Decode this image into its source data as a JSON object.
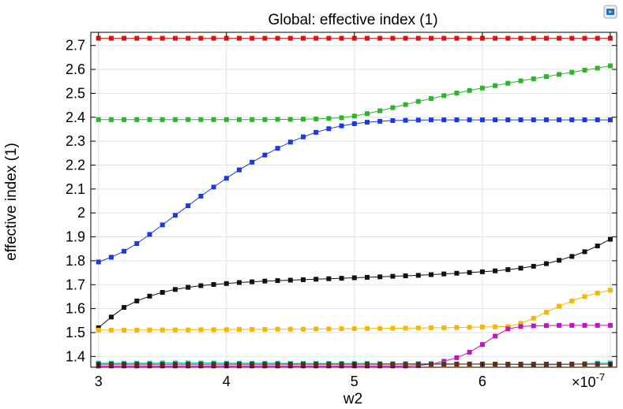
{
  "chart_data": {
    "type": "line",
    "title": "Global: effective index (1)",
    "xlabel": "w2",
    "ylabel": "effective index (1)",
    "x_multiplier_label": "×10",
    "x_multiplier_exponent": "-7",
    "xlim": [
      2.94,
      7.05
    ],
    "ylim": [
      1.355,
      2.755
    ],
    "x_ticks": [
      3,
      4,
      5,
      6,
      7
    ],
    "x_tick_labels": [
      "3",
      "4",
      "5",
      "6",
      ""
    ],
    "y_ticks": [
      1.4,
      1.5,
      1.6,
      1.7,
      1.8,
      1.9,
      2.0,
      2.1,
      2.2,
      2.3,
      2.4,
      2.5,
      2.6,
      2.7
    ],
    "y_tick_labels": [
      "1.4",
      "1.5",
      "1.6",
      "1.7",
      "1.8",
      "1.9",
      "2",
      "2.1",
      "2.2",
      "2.3",
      "2.4",
      "2.5",
      "2.6",
      "2.7"
    ],
    "grid": true,
    "legend": "none",
    "x": [
      3.0,
      3.1,
      3.2,
      3.3,
      3.4,
      3.5,
      3.6,
      3.7,
      3.8,
      3.9,
      4.0,
      4.1,
      4.2,
      4.3,
      4.4,
      4.5,
      4.6,
      4.7,
      4.8,
      4.9,
      5.0,
      5.1,
      5.2,
      5.3,
      5.4,
      5.5,
      5.6,
      5.7,
      5.8,
      5.9,
      6.0,
      6.1,
      6.2,
      6.3,
      6.4,
      6.5,
      6.6,
      6.7,
      6.8,
      6.9,
      7.0
    ],
    "series": [
      {
        "color": "#dd1111",
        "values": [
          2.73,
          2.73,
          2.73,
          2.73,
          2.73,
          2.73,
          2.73,
          2.73,
          2.73,
          2.73,
          2.73,
          2.73,
          2.73,
          2.73,
          2.73,
          2.73,
          2.73,
          2.73,
          2.73,
          2.73,
          2.73,
          2.73,
          2.73,
          2.73,
          2.73,
          2.73,
          2.73,
          2.73,
          2.73,
          2.73,
          2.73,
          2.73,
          2.73,
          2.73,
          2.73,
          2.73,
          2.73,
          2.73,
          2.73,
          2.73,
          2.73
        ]
      },
      {
        "color": "#2ab52a",
        "values": [
          2.39,
          2.39,
          2.39,
          2.39,
          2.39,
          2.39,
          2.39,
          2.39,
          2.39,
          2.39,
          2.39,
          2.39,
          2.39,
          2.39,
          2.391,
          2.391,
          2.392,
          2.393,
          2.395,
          2.398,
          2.405,
          2.415,
          2.427,
          2.44,
          2.453,
          2.466,
          2.478,
          2.49,
          2.501,
          2.512,
          2.522,
          2.532,
          2.542,
          2.552,
          2.561,
          2.57,
          2.579,
          2.588,
          2.597,
          2.605,
          2.615
        ]
      },
      {
        "color": "#1a3ae0",
        "values": [
          1.795,
          1.815,
          1.84,
          1.872,
          1.91,
          1.95,
          1.99,
          2.03,
          2.07,
          2.108,
          2.145,
          2.18,
          2.212,
          2.242,
          2.27,
          2.296,
          2.318,
          2.337,
          2.352,
          2.364,
          2.373,
          2.379,
          2.383,
          2.386,
          2.387,
          2.388,
          2.389,
          2.389,
          2.389,
          2.389,
          2.389,
          2.389,
          2.389,
          2.389,
          2.389,
          2.389,
          2.389,
          2.389,
          2.389,
          2.389,
          2.389
        ]
      },
      {
        "color": "#111111",
        "values": [
          1.52,
          1.565,
          1.605,
          1.632,
          1.652,
          1.668,
          1.68,
          1.689,
          1.696,
          1.701,
          1.705,
          1.709,
          1.712,
          1.715,
          1.717,
          1.719,
          1.721,
          1.723,
          1.725,
          1.727,
          1.729,
          1.731,
          1.733,
          1.735,
          1.737,
          1.739,
          1.742,
          1.745,
          1.748,
          1.751,
          1.754,
          1.758,
          1.763,
          1.769,
          1.777,
          1.788,
          1.802,
          1.818,
          1.838,
          1.862,
          1.89
        ]
      },
      {
        "color": "#f5b800",
        "values": [
          1.51,
          1.51,
          1.51,
          1.51,
          1.511,
          1.511,
          1.511,
          1.511,
          1.512,
          1.512,
          1.512,
          1.513,
          1.513,
          1.513,
          1.514,
          1.514,
          1.514,
          1.515,
          1.515,
          1.516,
          1.516,
          1.517,
          1.517,
          1.518,
          1.518,
          1.519,
          1.52,
          1.52,
          1.521,
          1.522,
          1.523,
          1.524,
          1.525,
          1.538,
          1.56,
          1.585,
          1.61,
          1.632,
          1.65,
          1.665,
          1.677
        ]
      },
      {
        "color": "#c014c0",
        "values": [
          1.36,
          1.36,
          1.36,
          1.36,
          1.36,
          1.36,
          1.36,
          1.36,
          1.36,
          1.36,
          1.36,
          1.36,
          1.36,
          1.36,
          1.36,
          1.36,
          1.36,
          1.36,
          1.36,
          1.36,
          1.36,
          1.36,
          1.36,
          1.36,
          1.36,
          1.362,
          1.368,
          1.38,
          1.395,
          1.418,
          1.45,
          1.485,
          1.515,
          1.525,
          1.528,
          1.529,
          1.53,
          1.53,
          1.53,
          1.53,
          1.53
        ]
      },
      {
        "color": "#18c8d8",
        "values": [
          1.372,
          1.372,
          1.372,
          1.372,
          1.372,
          1.373,
          1.373,
          1.373,
          1.373,
          1.373,
          1.372,
          1.372,
          1.372,
          1.372,
          1.372,
          1.371,
          1.371,
          1.371,
          1.371,
          1.371,
          1.371,
          1.371,
          1.37,
          1.37,
          1.37,
          1.37,
          1.37,
          1.37,
          1.369,
          1.369,
          1.369,
          1.368,
          1.367,
          1.366,
          1.365,
          1.365,
          1.366,
          1.368,
          1.37,
          1.372,
          1.373
        ]
      },
      {
        "color": "#6a2a10",
        "values": [
          1.368,
          1.368,
          1.368,
          1.368,
          1.368,
          1.368,
          1.368,
          1.368,
          1.368,
          1.368,
          1.368,
          1.368,
          1.368,
          1.368,
          1.368,
          1.368,
          1.368,
          1.368,
          1.368,
          1.368,
          1.368,
          1.368,
          1.368,
          1.368,
          1.368,
          1.368,
          1.368,
          1.368,
          1.368,
          1.368,
          1.368,
          1.368,
          1.368,
          1.368,
          1.368,
          1.368,
          1.368,
          1.368,
          1.368,
          1.368,
          1.368
        ]
      }
    ]
  }
}
